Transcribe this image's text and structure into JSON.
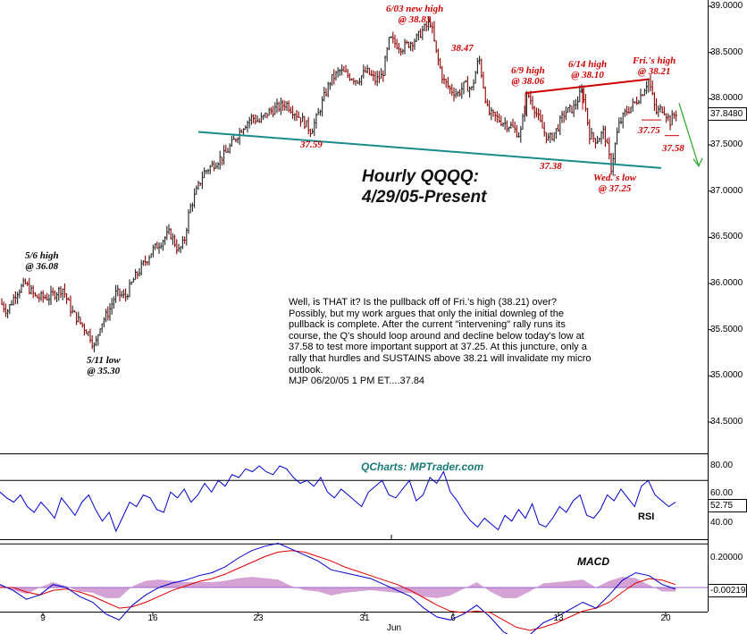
{
  "chart_data": [
    {
      "type": "ohlc",
      "title": "Hourly QQQQ:",
      "subtitle": "4/29/05-Present",
      "ylim": [
        34.25,
        39.0
      ],
      "y_ticks": [
        "39.0000",
        "38.5000",
        "38.0000",
        "37.5000",
        "37.0000",
        "36.5000",
        "36.0000",
        "35.5000",
        "35.0000",
        "34.5000"
      ],
      "last_price": "37.8480",
      "x_ticks": [
        "9",
        "16",
        "23",
        "31",
        "6",
        "13",
        "20"
      ],
      "x_sublabel": "Jun",
      "price_path": [
        [
          0,
          35.8
        ],
        [
          8,
          35.7
        ],
        [
          18,
          35.9
        ],
        [
          28,
          36.0
        ],
        [
          40,
          35.85
        ],
        [
          55,
          35.85
        ],
        [
          70,
          35.95
        ],
        [
          80,
          35.7
        ],
        [
          92,
          35.55
        ],
        [
          100,
          35.45
        ],
        [
          106,
          35.3
        ],
        [
          112,
          35.55
        ],
        [
          122,
          35.7
        ],
        [
          130,
          35.9
        ],
        [
          140,
          35.85
        ],
        [
          150,
          36.05
        ],
        [
          160,
          36.2
        ],
        [
          170,
          36.35
        ],
        [
          180,
          36.45
        ],
        [
          190,
          36.55
        ],
        [
          200,
          36.35
        ],
        [
          206,
          36.45
        ],
        [
          212,
          36.8
        ],
        [
          218,
          36.95
        ],
        [
          228,
          37.2
        ],
        [
          240,
          37.3
        ],
        [
          252,
          37.4
        ],
        [
          262,
          37.55
        ],
        [
          272,
          37.7
        ],
        [
          282,
          37.8
        ],
        [
          290,
          37.75
        ],
        [
          300,
          37.85
        ],
        [
          310,
          37.9
        ],
        [
          320,
          37.95
        ],
        [
          330,
          37.85
        ],
        [
          340,
          37.75
        ],
        [
          348,
          37.65
        ],
        [
          355,
          37.8
        ],
        [
          362,
          38.0
        ],
        [
          370,
          38.2
        ],
        [
          380,
          38.3
        ],
        [
          390,
          38.25
        ],
        [
          400,
          38.2
        ],
        [
          410,
          38.3
        ],
        [
          420,
          38.2
        ],
        [
          428,
          38.25
        ],
        [
          436,
          38.65
        ],
        [
          442,
          38.6
        ],
        [
          450,
          38.55
        ],
        [
          458,
          38.6
        ],
        [
          466,
          38.65
        ],
        [
          474,
          38.75
        ],
        [
          482,
          38.83
        ],
        [
          488,
          38.5
        ],
        [
          496,
          38.2
        ],
        [
          504,
          38.1
        ],
        [
          512,
          38.05
        ],
        [
          520,
          38.15
        ],
        [
          528,
          38.1
        ],
        [
          536,
          38.45
        ],
        [
          540,
          38.2
        ],
        [
          546,
          37.85
        ],
        [
          554,
          37.8
        ],
        [
          562,
          37.75
        ],
        [
          572,
          37.7
        ],
        [
          582,
          37.6
        ],
        [
          590,
          38.06
        ],
        [
          598,
          37.9
        ],
        [
          606,
          37.7
        ],
        [
          614,
          37.55
        ],
        [
          622,
          37.65
        ],
        [
          632,
          37.85
        ],
        [
          642,
          37.9
        ],
        [
          652,
          38.1
        ],
        [
          660,
          37.6
        ],
        [
          668,
          37.55
        ],
        [
          676,
          37.65
        ],
        [
          684,
          37.25
        ],
        [
          692,
          37.7
        ],
        [
          700,
          37.85
        ],
        [
          710,
          37.95
        ],
        [
          718,
          38.05
        ],
        [
          726,
          38.21
        ],
        [
          734,
          37.85
        ],
        [
          742,
          37.9
        ],
        [
          750,
          37.75
        ],
        [
          756,
          37.85
        ]
      ],
      "trendlines": [
        {
          "points": [
            [
              222,
              37.64
            ],
            [
              740,
              37.25
            ]
          ],
          "color": "#1a8a8a"
        },
        {
          "points": [
            [
              588,
              38.06
            ],
            [
              726,
              38.21
            ]
          ],
          "color": "#cc0000"
        }
      ],
      "arrow": {
        "from": [
          760,
          37.95
        ],
        "to": [
          782,
          37.27
        ],
        "color": "#33aa33"
      },
      "annotations": [
        {
          "text": "6/03 new high\n@ 38.83",
          "color": "red"
        },
        {
          "text": "38.47",
          "color": "red"
        },
        {
          "text": "6/9 high\n@ 38.06",
          "color": "red"
        },
        {
          "text": "6/14 high\n@ 38.10",
          "color": "red"
        },
        {
          "text": "Fri.'s high\n@ 38.21",
          "color": "red"
        },
        {
          "text": "37.75",
          "color": "red"
        },
        {
          "text": "37.58",
          "color": "red"
        },
        {
          "text": "37.59",
          "color": "red"
        },
        {
          "text": "37.38",
          "color": "red"
        },
        {
          "text": "Wed.'s low\n@ 37.25",
          "color": "red"
        },
        {
          "text": "5/6 high\n@ 36.08",
          "color": "black"
        },
        {
          "text": "5/11 low\n@ 35.30",
          "color": "black"
        }
      ],
      "commentary": "Well, is THAT it? Is the pullback off of Fri.'s high (38.21) over? Possibly, but my work argues that only the initial downleg of the pullback is complete. After the current \"intervening\" rally runs its course, the Q's should loop around and decline below today's low at 37.58 to test more important support at 37.25. At this juncture, only a rally that hurdles and SUSTAINS above 38.21 will invalidate my micro outlook.",
      "signature": "MJP 06/20/05 1 PM ET....37.84"
    },
    {
      "type": "line",
      "name": "RSI",
      "brand": "QCharts: MPTrader.com",
      "ylim": [
        30,
        85
      ],
      "y_ticks": [
        "80.00",
        "60.00",
        "40.00"
      ],
      "last_value": "52.75",
      "values": [
        62,
        58,
        55,
        60,
        52,
        48,
        55,
        50,
        44,
        58,
        52,
        46,
        55,
        60,
        50,
        42,
        48,
        35,
        45,
        55,
        52,
        60,
        58,
        50,
        48,
        62,
        58,
        64,
        55,
        60,
        68,
        62,
        70,
        66,
        74,
        72,
        78,
        76,
        80,
        76,
        74,
        80,
        78,
        72,
        68,
        70,
        66,
        72,
        62,
        58,
        64,
        60,
        56,
        52,
        62,
        66,
        70,
        60,
        58,
        64,
        70,
        56,
        60,
        72,
        68,
        76,
        62,
        56,
        48,
        42,
        38,
        44,
        40,
        36,
        46,
        42,
        50,
        44,
        54,
        40,
        38,
        44,
        52,
        48,
        56,
        60,
        46,
        44,
        50,
        60,
        56,
        64,
        58,
        52,
        66,
        70,
        60,
        56,
        52,
        55
      ]
    },
    {
      "type": "line",
      "name": "MACD",
      "ylim": [
        -0.45,
        0.3
      ],
      "y_ticks": [
        "0.20000"
      ],
      "last_value": "-0.00219",
      "values": [
        0.02,
        -0.02,
        -0.08,
        -0.05,
        0.02,
        0.0,
        -0.06,
        -0.1,
        -0.18,
        -0.22,
        -0.12,
        -0.05,
        0.0,
        0.03,
        0.05,
        0.08,
        0.1,
        0.14,
        0.2,
        0.25,
        0.28,
        0.3,
        0.26,
        0.22,
        0.18,
        0.12,
        0.1,
        0.08,
        0.06,
        0.02,
        -0.02,
        -0.06,
        -0.14,
        -0.2,
        -0.22,
        -0.18,
        -0.12,
        -0.2,
        -0.3,
        -0.35,
        -0.32,
        -0.24,
        -0.2,
        -0.15,
        -0.1,
        -0.14,
        -0.05,
        0.05,
        0.1,
        0.08,
        0.02,
        -0.01
      ],
      "signal": [
        0.0,
        0.0,
        -0.03,
        -0.05,
        -0.02,
        -0.01,
        -0.03,
        -0.06,
        -0.1,
        -0.14,
        -0.13,
        -0.1,
        -0.06,
        -0.02,
        0.01,
        0.04,
        0.06,
        0.09,
        0.13,
        0.17,
        0.21,
        0.24,
        0.25,
        0.24,
        0.21,
        0.18,
        0.14,
        0.11,
        0.08,
        0.05,
        0.02,
        -0.02,
        -0.07,
        -0.12,
        -0.16,
        -0.17,
        -0.16,
        -0.17,
        -0.22,
        -0.27,
        -0.29,
        -0.27,
        -0.24,
        -0.2,
        -0.16,
        -0.14,
        -0.1,
        -0.03,
        0.03,
        0.06,
        0.05,
        0.02
      ]
    }
  ]
}
